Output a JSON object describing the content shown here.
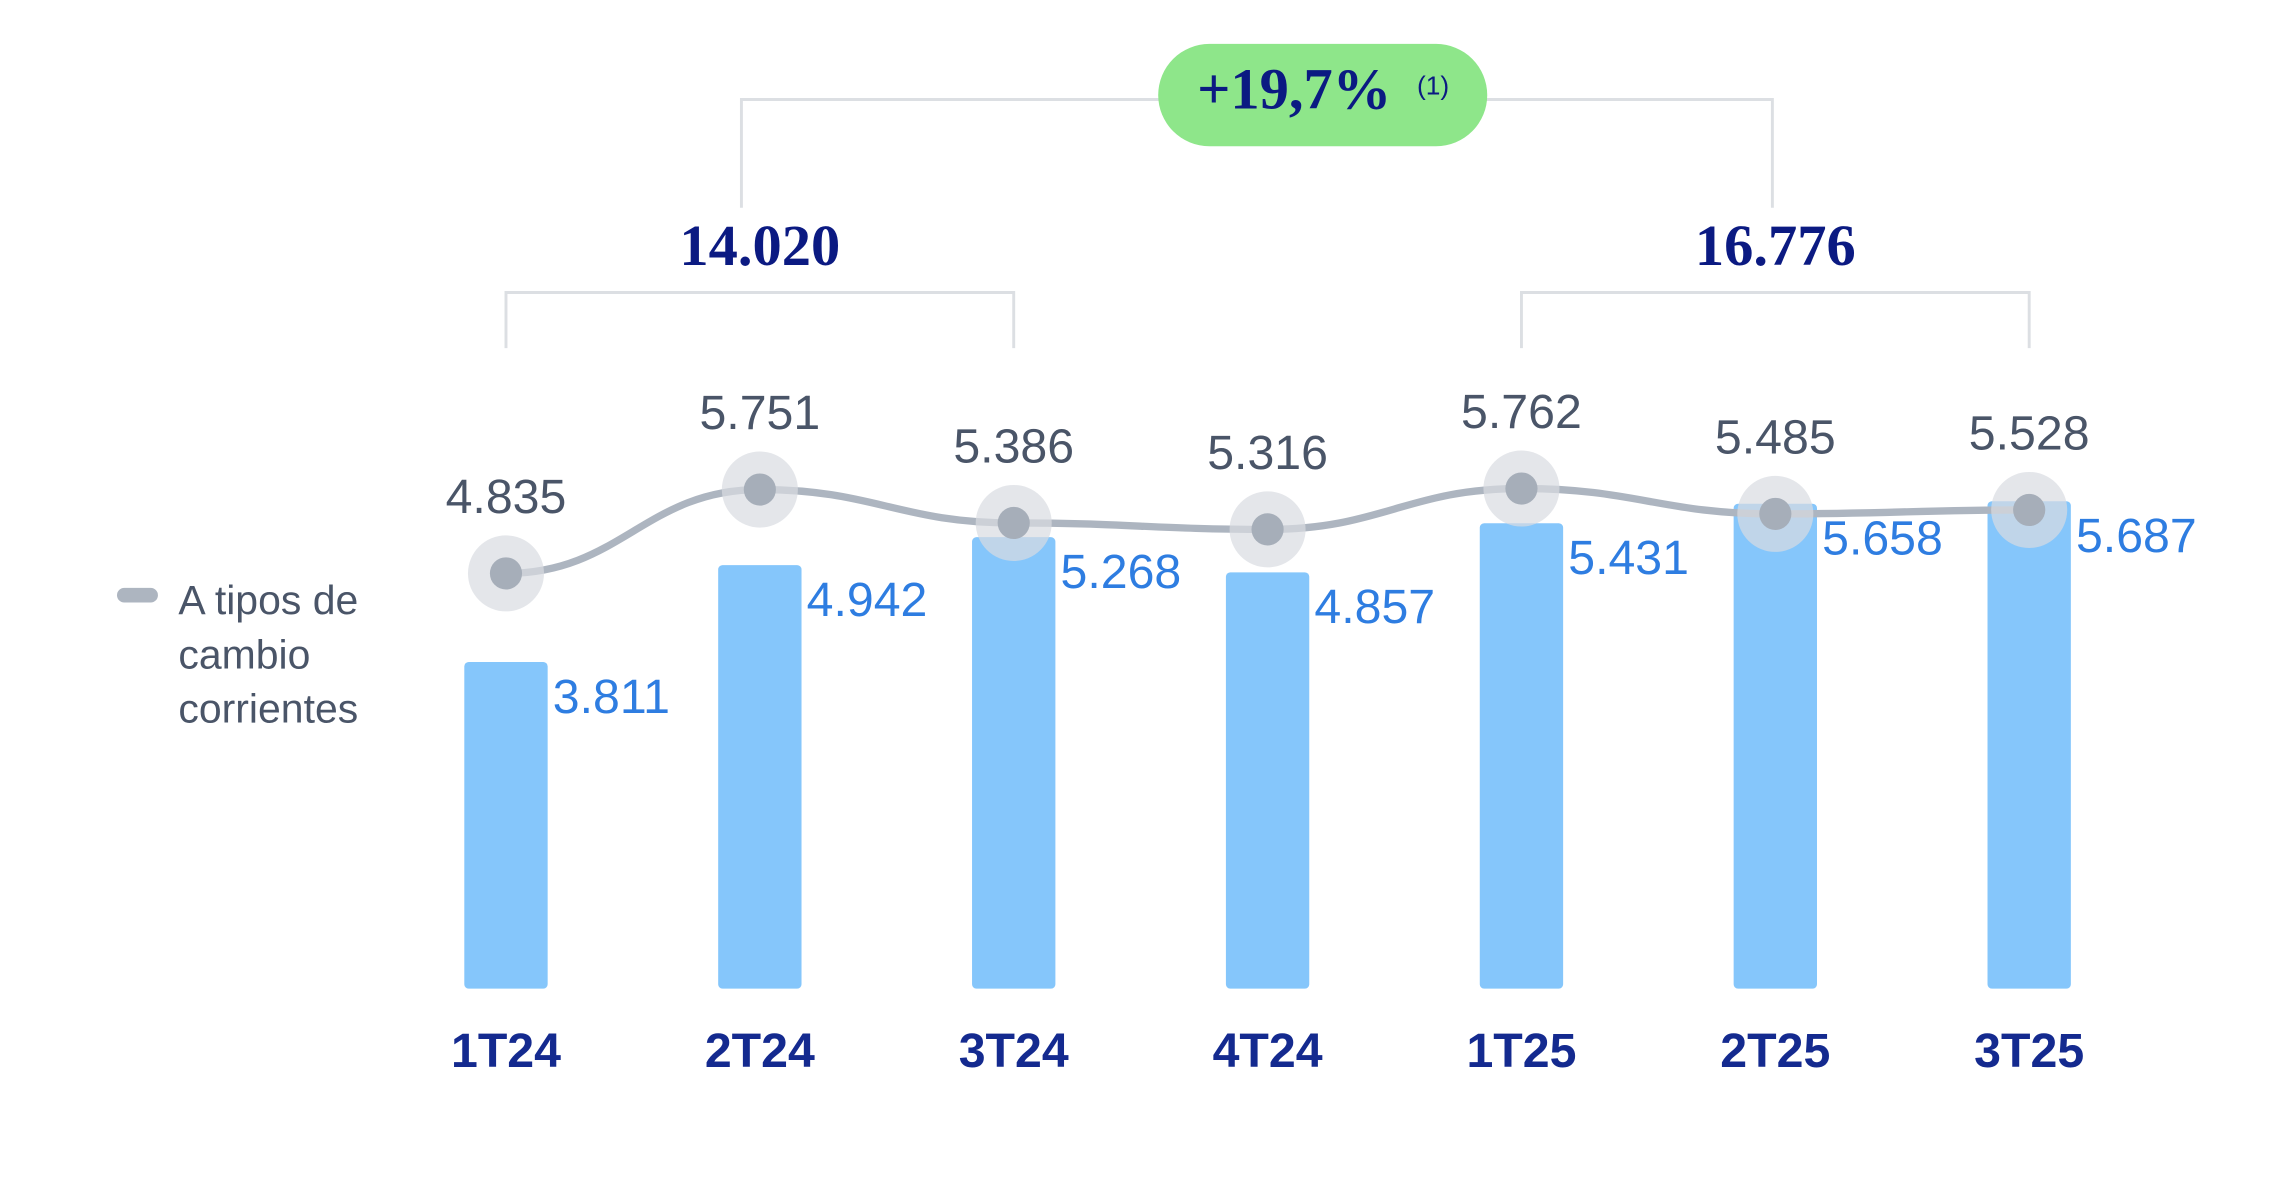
{
  "chart_data": {
    "type": "bar-line",
    "categories": [
      "1T24",
      "2T24",
      "3T24",
      "4T24",
      "1T25",
      "2T25",
      "3T25"
    ],
    "series": [
      {
        "name": "A tipos de cambio corrientes",
        "type": "line",
        "axis": "y2",
        "color": "#adb5c0",
        "values": [
          4835,
          5751,
          5386,
          5316,
          5762,
          5485,
          5528
        ],
        "value_labels": [
          "4.835",
          "5.751",
          "5.386",
          "5.316",
          "5.762",
          "5.485",
          "5.528"
        ]
      },
      {
        "type": "bar",
        "color": "#85c6fb",
        "values": [
          3811,
          4942,
          5268,
          4857,
          5431,
          5658,
          5687
        ],
        "value_labels": [
          "3.811",
          "4.942",
          "5.268",
          "4.857",
          "5.431",
          "5.658",
          "5.687"
        ]
      }
    ],
    "ylim": [
      0,
      10000
    ],
    "y2lim": [
      300,
      9660
    ],
    "grid": false,
    "group_totals": [
      {
        "label": "14.020",
        "from": 0,
        "to": 2
      },
      {
        "label": "16.776",
        "from": 4,
        "to": 6
      }
    ],
    "growth": {
      "label": "+19,7%",
      "note": "(1)"
    }
  }
}
